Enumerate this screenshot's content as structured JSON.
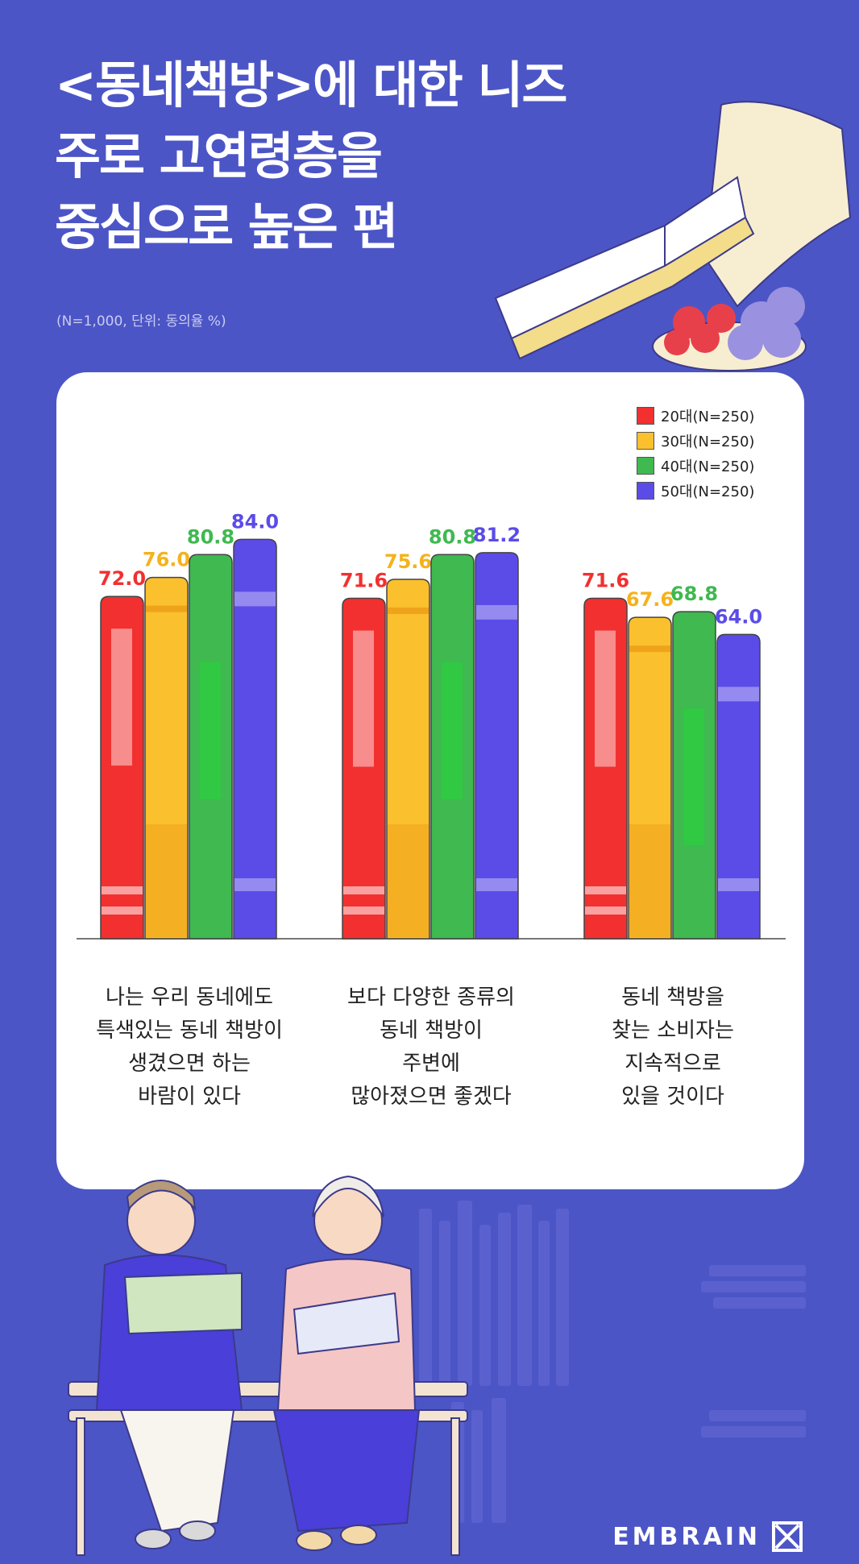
{
  "header": {
    "title_lines": [
      "<동네책방>에 대한 니즈",
      "주로 고연령층을",
      "중심으로 높은 편"
    ],
    "note": "(N=1,000, 단위: 동의율 %)"
  },
  "chart_data": {
    "type": "bar",
    "categories": [
      [
        "나는 우리 동네에도",
        "특색있는 동네 책방이",
        "생겼으면 하는",
        "바람이 있다"
      ],
      [
        "보다 다양한 종류의",
        "동네 책방이",
        "주변에",
        "많아졌으면 좋겠다"
      ],
      [
        "동네 책방을",
        "찾는 소비자는",
        "지속적으로",
        "있을 것이다"
      ]
    ],
    "series": [
      {
        "name": "20대(N=250)",
        "color": "#f23030",
        "values": [
          72.0,
          71.6,
          71.6
        ]
      },
      {
        "name": "30대(N=250)",
        "color": "#fbc02d",
        "values": [
          76.0,
          75.6,
          67.6
        ]
      },
      {
        "name": "40대(N=250)",
        "color": "#3fb950",
        "values": [
          80.8,
          80.8,
          68.8
        ]
      },
      {
        "name": "50대(N=250)",
        "color": "#5b4ce8",
        "values": [
          84.0,
          81.2,
          64.0
        ]
      }
    ],
    "label_colors": [
      "#f23030",
      "#f5b21c",
      "#3fb950",
      "#5b4ce8"
    ],
    "legend_position": "top-right",
    "grid": false
  },
  "brand": {
    "name": "EMBRAIN"
  }
}
